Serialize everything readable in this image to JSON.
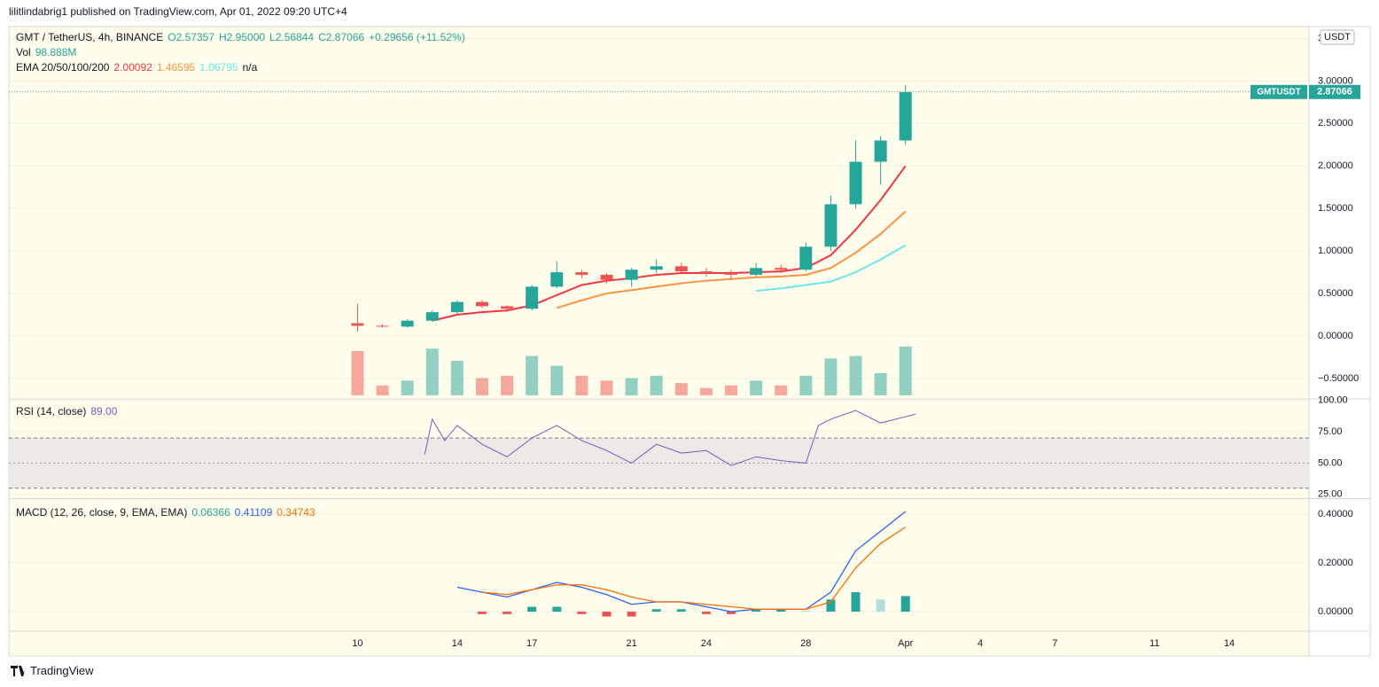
{
  "header": {
    "publisher": "lilitlindabrig1 published on TradingView.com, Apr 01, 2022 09:20 UTC+4",
    "footer": "TradingView"
  },
  "chart_data": [
    {
      "type": "candlestick",
      "symbol": "GMT / TetherUS, 4h, BINANCE",
      "ohlc_text": [
        "O2.57357",
        "H2.95000",
        "L2.56844",
        "C2.87066",
        "+0.29656 (+11.52%)"
      ],
      "volume_label": "Vol",
      "volume_text": "98.888M",
      "ema_legend": {
        "label": "EMA 20/50/100/200",
        "values": [
          "2.00092",
          "1.46595",
          "1.06795",
          "n/a"
        ]
      },
      "x": [
        10,
        11,
        12,
        13,
        14,
        15,
        16,
        17,
        18,
        19,
        20,
        21,
        22,
        23,
        24,
        25,
        26,
        27,
        28,
        29,
        30,
        31,
        32
      ],
      "open": [
        0.15,
        0.12,
        0.11,
        0.18,
        0.28,
        0.4,
        0.35,
        0.32,
        0.58,
        0.75,
        0.72,
        0.66,
        0.78,
        0.82,
        0.76,
        0.74,
        0.72,
        0.8,
        0.78,
        1.05,
        1.55,
        2.05,
        2.3
      ],
      "high": [
        0.38,
        0.14,
        0.2,
        0.3,
        0.42,
        0.42,
        0.36,
        0.6,
        0.88,
        0.78,
        0.74,
        0.8,
        0.9,
        0.86,
        0.8,
        0.78,
        0.86,
        0.84,
        1.1,
        1.65,
        2.3,
        2.35,
        2.95
      ],
      "low": [
        0.05,
        0.1,
        0.1,
        0.17,
        0.26,
        0.33,
        0.28,
        0.3,
        0.56,
        0.68,
        0.62,
        0.58,
        0.74,
        0.74,
        0.7,
        0.66,
        0.7,
        0.74,
        0.76,
        1.0,
        1.5,
        1.78,
        2.25
      ],
      "close": [
        0.12,
        0.11,
        0.18,
        0.28,
        0.4,
        0.35,
        0.32,
        0.58,
        0.75,
        0.72,
        0.66,
        0.78,
        0.82,
        0.76,
        0.74,
        0.72,
        0.8,
        0.78,
        1.05,
        1.55,
        2.05,
        2.3,
        2.87
      ],
      "volume": [
        90,
        20,
        30,
        95,
        70,
        35,
        40,
        80,
        60,
        40,
        30,
        35,
        40,
        25,
        15,
        20,
        30,
        20,
        40,
        75,
        80,
        45,
        99
      ],
      "up_color": "#26a69a",
      "down_color": "#ef5350",
      "lines": [
        {
          "color": "#f23645",
          "x": [
            13,
            14,
            15,
            16,
            17,
            18,
            19,
            20,
            21,
            22,
            23,
            24,
            25,
            26,
            27,
            28,
            29,
            30,
            31,
            32
          ],
          "values": [
            0.18,
            0.25,
            0.28,
            0.3,
            0.36,
            0.48,
            0.6,
            0.65,
            0.68,
            0.72,
            0.74,
            0.74,
            0.74,
            0.75,
            0.76,
            0.8,
            0.95,
            1.25,
            1.6,
            2.0
          ]
        },
        {
          "color": "#ff9340",
          "x": [
            18,
            19,
            20,
            21,
            22,
            23,
            24,
            25,
            26,
            27,
            28,
            29,
            30,
            31,
            32
          ],
          "values": [
            0.33,
            0.42,
            0.5,
            0.54,
            0.58,
            0.62,
            0.65,
            0.67,
            0.69,
            0.7,
            0.72,
            0.8,
            0.98,
            1.2,
            1.466
          ]
        },
        {
          "color": "#6ae6ee",
          "x": [
            26,
            27,
            28,
            29,
            30,
            31,
            32
          ],
          "values": [
            0.53,
            0.56,
            0.6,
            0.64,
            0.75,
            0.9,
            1.068
          ]
        }
      ],
      "last_price": 2.87066,
      "symbol_tag": "GMTUSDT",
      "scale_unit": "USDT",
      "xlim": [
        -4,
        48.2
      ],
      "ylim": [
        -0.73,
        3.64
      ],
      "yticks": [
        {
          "value": -0.5,
          "label": "−0.50000"
        },
        {
          "value": 0,
          "label": "0.00000"
        },
        {
          "value": 0.5,
          "label": "0.50000"
        },
        {
          "value": 1,
          "label": "1.00000"
        },
        {
          "value": 1.5,
          "label": "1.50000"
        },
        {
          "value": 2,
          "label": "2.00000"
        },
        {
          "value": 2.5,
          "label": "2.50000"
        },
        {
          "value": 3,
          "label": "3.00000"
        },
        {
          "value": 3.5,
          "label": "3.50000"
        }
      ],
      "grid": true
    },
    {
      "type": "line",
      "title": "RSI (14, close)",
      "value_text": "89.00",
      "color": "#7e57c2",
      "x": [
        12.7,
        13,
        13.5,
        14,
        15,
        16,
        17,
        18,
        19,
        20,
        21,
        22,
        23,
        24,
        25,
        26,
        27,
        28,
        28.5,
        29,
        30,
        31,
        32.4
      ],
      "values": [
        57,
        85,
        68,
        80,
        65,
        55,
        70,
        80,
        68,
        60,
        50,
        65,
        58,
        60,
        48,
        55,
        52,
        50,
        80,
        85,
        92,
        82,
        89
      ],
      "band": [
        30,
        70
      ],
      "midline": 50,
      "band_color": "#ede9e6",
      "xlim": [
        -4,
        48.2
      ],
      "ylim": [
        22,
        100.5
      ],
      "yticks": [
        {
          "value": 25,
          "label": "25.00"
        },
        {
          "value": 50,
          "label": "50.00"
        },
        {
          "value": 75,
          "label": "75.00"
        },
        {
          "value": 100,
          "label": "100.00"
        }
      ]
    },
    {
      "type": "macd",
      "title": "MACD (12, 26, close, 9, EMA, EMA)",
      "legend_values": [
        "0.06366",
        "0.41109",
        "0.34743"
      ],
      "series": [
        {
          "color": "#2962ff",
          "x": [
            14,
            15,
            16,
            17,
            18,
            19,
            20,
            21,
            22,
            23,
            24,
            25,
            26,
            27,
            28,
            29,
            30,
            31,
            32
          ],
          "values": [
            0.1,
            0.08,
            0.06,
            0.09,
            0.12,
            0.1,
            0.07,
            0.03,
            0.04,
            0.04,
            0.02,
            0.0,
            0.01,
            0.01,
            0.01,
            0.08,
            0.25,
            0.33,
            0.411
          ]
        },
        {
          "color": "#ff6d00",
          "x": [
            15,
            16,
            17,
            18,
            19,
            20,
            21,
            22,
            23,
            24,
            25,
            26,
            27,
            28,
            29,
            30,
            31,
            32
          ],
          "values": [
            0.08,
            0.07,
            0.09,
            0.11,
            0.11,
            0.09,
            0.06,
            0.04,
            0.04,
            0.03,
            0.02,
            0.01,
            0.01,
            0.01,
            0.04,
            0.18,
            0.28,
            0.347
          ]
        }
      ],
      "histogram": {
        "x": [
          15,
          16,
          17,
          18,
          19,
          20,
          21,
          22,
          23,
          24,
          25,
          26,
          27,
          28,
          29,
          30,
          31,
          32
        ],
        "values": [
          -0.01,
          -0.01,
          0.02,
          0.02,
          -0.01,
          -0.02,
          -0.02,
          0.01,
          0.01,
          -0.01,
          -0.01,
          0.01,
          0.01,
          0.005,
          0.05,
          0.08,
          0.05,
          0.064
        ]
      },
      "histogram_colors": [
        "#26a69a",
        "#b2dfdb",
        "#ef5350",
        "#ffcdd2"
      ],
      "xlim": [
        -4,
        48.2
      ],
      "ylim": [
        -0.08,
        0.462
      ],
      "yticks": [
        {
          "value": 0,
          "label": "0.00000"
        },
        {
          "value": 0.2,
          "label": "0.20000"
        },
        {
          "value": 0.4,
          "label": "0.40000"
        }
      ],
      "xticks": [
        10,
        14,
        17,
        21,
        24,
        28,
        {
          "value": 32,
          "label": "Apr"
        },
        {
          "value": 35,
          "label": "4"
        },
        {
          "value": 38,
          "label": "7"
        },
        {
          "value": 42,
          "label": "11"
        },
        {
          "value": 45,
          "label": "14"
        }
      ]
    }
  ]
}
